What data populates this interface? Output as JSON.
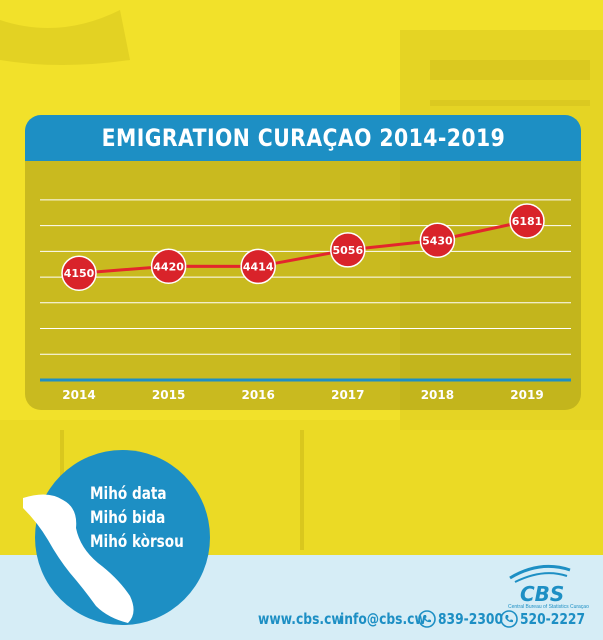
{
  "chart_data": {
    "type": "line",
    "title": "EMIGRATION CURAÇAO 2014-2019",
    "categories": [
      "2014",
      "2015",
      "2016",
      "2017",
      "2018",
      "2019"
    ],
    "series": [
      {
        "values": [
          4150,
          4420,
          4414,
          5056,
          5430,
          6181
        ]
      }
    ],
    "ylim": [
      0,
      7500
    ],
    "grid": true,
    "xlabel": "",
    "ylabel": ""
  },
  "colors": {
    "brand_blue": "#1d8fc4",
    "background_yellow": "#f2e12a",
    "line_red": "#e3262c",
    "marker_red": "#d9232a"
  },
  "badge": {
    "lines": [
      "Mihó data",
      "Mihó bida",
      "Mihó kòrsou"
    ]
  },
  "footer": {
    "website": "www.cbs.cw",
    "email": "info@cbs.cw",
    "phone1": "839-2300",
    "phone2": "520-2227",
    "org_short": "CBS",
    "org_full": "Central Bureau of Statistics Curaçao"
  },
  "icons": [
    "phone-icon",
    "island-map-icon",
    "cbs-logo-icon"
  ]
}
